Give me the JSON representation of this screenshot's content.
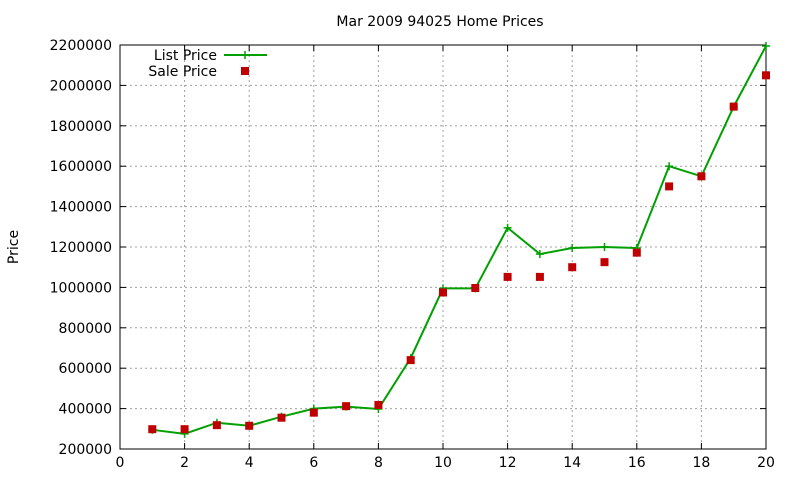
{
  "chart_data": {
    "type": "line",
    "title": "Mar 2009 94025 Home Prices",
    "xlabel": "",
    "ylabel": "Price",
    "xlim": [
      0,
      20
    ],
    "ylim": [
      200000,
      2200000
    ],
    "x_ticks": [
      0,
      2,
      4,
      6,
      8,
      10,
      12,
      14,
      16,
      18,
      20
    ],
    "y_ticks": [
      200000,
      400000,
      600000,
      800000,
      1000000,
      1200000,
      1400000,
      1600000,
      1800000,
      2000000,
      2200000
    ],
    "grid": true,
    "legend_position": "top-left",
    "series": [
      {
        "name": "List Price",
        "style": "line-with-plus-markers",
        "color": "#00a000",
        "x": [
          1,
          2,
          3,
          4,
          5,
          6,
          7,
          8,
          9,
          10,
          11,
          12,
          13,
          14,
          15,
          16,
          17,
          18,
          19,
          20
        ],
        "y": [
          295000,
          275000,
          330000,
          315000,
          360000,
          400000,
          410000,
          398000,
          650000,
          995000,
          995000,
          1295000,
          1165000,
          1195000,
          1200000,
          1195000,
          1600000,
          1550000,
          1895000,
          2195000
        ]
      },
      {
        "name": "Sale Price",
        "style": "square-markers",
        "color": "#c00000",
        "x": [
          1,
          2,
          3,
          4,
          5,
          6,
          7,
          8,
          9,
          10,
          11,
          12,
          13,
          14,
          15,
          16,
          17,
          18,
          19,
          20
        ],
        "y": [
          298000,
          298000,
          318000,
          315000,
          355000,
          380000,
          412000,
          418000,
          640000,
          975000,
          997000,
          1052000,
          1052000,
          1100000,
          1125000,
          1172000,
          1500000,
          1550000,
          1895000,
          2050000
        ]
      }
    ]
  }
}
